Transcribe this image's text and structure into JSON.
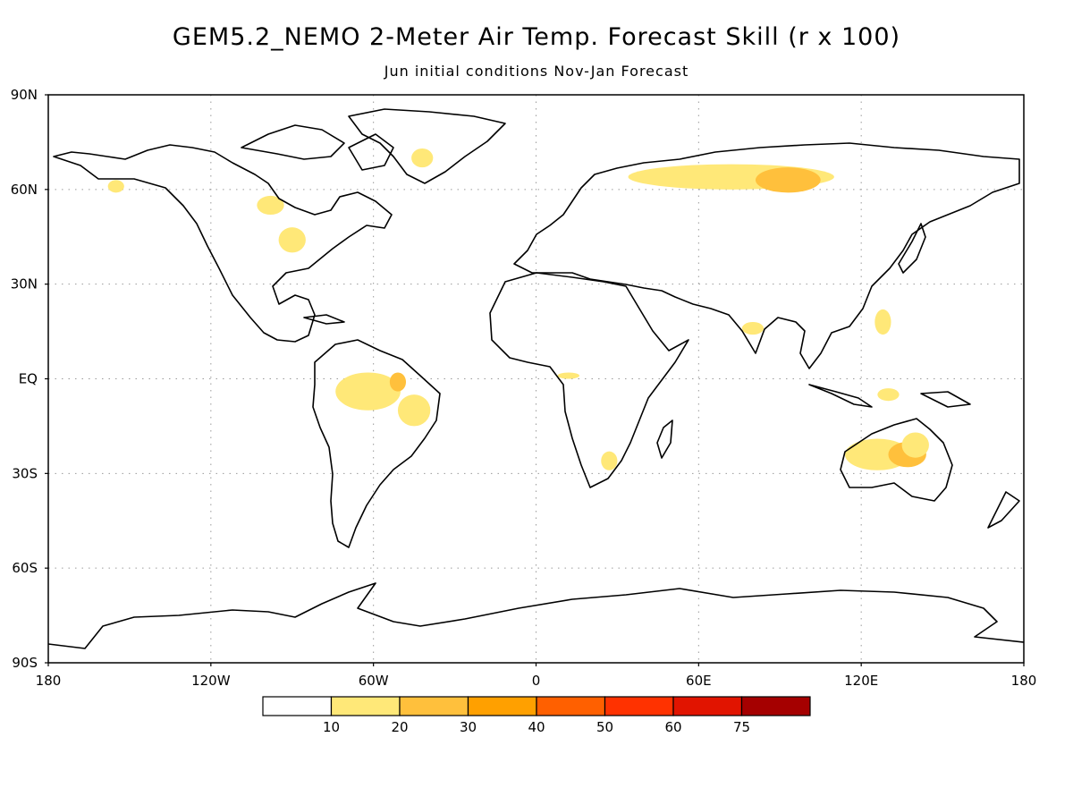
{
  "title": "GEM5.2_NEMO 2-Meter Air Temp. Forecast Skill (r x 100)",
  "subtitle": "Jun initial conditions   Nov-Jan Forecast",
  "axes": {
    "lat_labels": [
      {
        "lat": 90,
        "label": "90N"
      },
      {
        "lat": 60,
        "label": "60N"
      },
      {
        "lat": 30,
        "label": "30N"
      },
      {
        "lat": 0,
        "label": "EQ"
      },
      {
        "lat": -30,
        "label": "30S"
      },
      {
        "lat": -60,
        "label": "60S"
      },
      {
        "lat": -90,
        "label": "90S"
      }
    ],
    "lon_labels": [
      {
        "lon": -180,
        "label": "180"
      },
      {
        "lon": -120,
        "label": "120W"
      },
      {
        "lon": -60,
        "label": "60W"
      },
      {
        "lon": 0,
        "label": "0"
      },
      {
        "lon": 60,
        "label": "60E"
      },
      {
        "lon": 120,
        "label": "120E"
      },
      {
        "lon": 180,
        "label": "180"
      }
    ]
  },
  "colorbar": {
    "colors": [
      "#ffffff",
      "#ffe878",
      "#ffc03c",
      "#ffa000",
      "#ff6000",
      "#ff3200",
      "#e11400",
      "#a50000"
    ],
    "labels": [
      "10",
      "20",
      "30",
      "40",
      "50",
      "60",
      "75"
    ]
  },
  "skill_areas": [
    {
      "lon": -98,
      "lat": 55,
      "rx": 5,
      "ry": 3,
      "level": 1
    },
    {
      "lon": -90,
      "lat": 44,
      "rx": 5,
      "ry": 4,
      "level": 1
    },
    {
      "lon": -42,
      "lat": 70,
      "rx": 4,
      "ry": 3,
      "level": 1
    },
    {
      "lon": -155,
      "lat": 61,
      "rx": 3,
      "ry": 2,
      "level": 1
    },
    {
      "lon": 72,
      "lat": 64,
      "rx": 38,
      "ry": 4,
      "level": 1
    },
    {
      "lon": 93,
      "lat": 63,
      "rx": 12,
      "ry": 4,
      "level": 2
    },
    {
      "lon": 128,
      "lat": 18,
      "rx": 3,
      "ry": 4,
      "level": 1
    },
    {
      "lon": -62,
      "lat": -4,
      "rx": 12,
      "ry": 6,
      "level": 1
    },
    {
      "lon": -45,
      "lat": -10,
      "rx": 6,
      "ry": 5,
      "level": 1
    },
    {
      "lon": -51,
      "lat": -1,
      "rx": 3,
      "ry": 3,
      "level": 2
    },
    {
      "lon": 126,
      "lat": -24,
      "rx": 12,
      "ry": 5,
      "level": 1
    },
    {
      "lon": 137,
      "lat": -24,
      "rx": 7,
      "ry": 4,
      "level": 2
    },
    {
      "lon": 140,
      "lat": -21,
      "rx": 5,
      "ry": 4,
      "level": 1
    },
    {
      "lon": 27,
      "lat": -26,
      "rx": 3,
      "ry": 3,
      "level": 1
    },
    {
      "lon": 12,
      "lat": 1,
      "rx": 4,
      "ry": 1,
      "level": 1
    },
    {
      "lon": 130,
      "lat": -5,
      "rx": 4,
      "ry": 2,
      "level": 1
    },
    {
      "lon": 80,
      "lat": 16,
      "rx": 4,
      "ry": 2,
      "level": 1
    }
  ]
}
